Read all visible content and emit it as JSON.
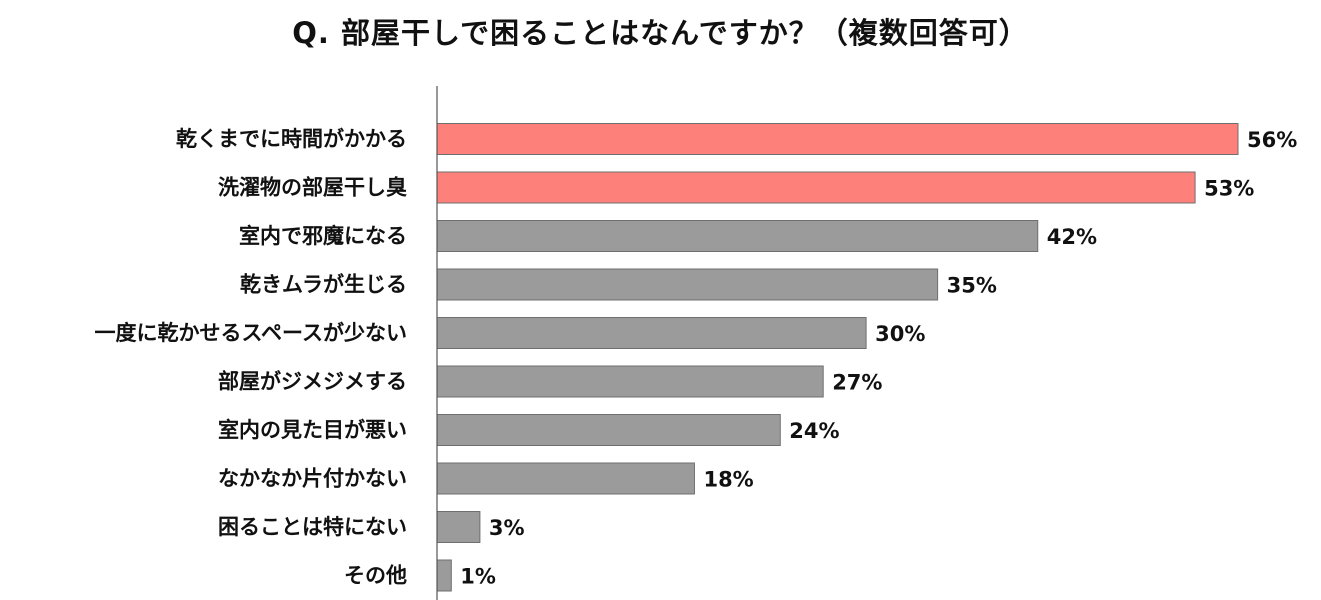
{
  "chart_data": {
    "type": "bar",
    "orientation": "horizontal",
    "title": "Q. 部屋干しで困ることはなんですか？（複数回答可）",
    "categories": [
      "乾くまでに時間がかかる",
      "洗濯物の部屋干し臭",
      "室内で邪魔になる",
      "乾きムラが生じる",
      "一度に乾かせるスペースが少ない",
      "部屋がジメジメする",
      "室内の見た目が悪い",
      "なかなか片付かない",
      "困ることは特にない",
      "その他"
    ],
    "values": [
      56,
      53,
      42,
      35,
      30,
      27,
      24,
      18,
      3,
      1
    ],
    "value_labels": [
      "56%",
      "53%",
      "42%",
      "35%",
      "30%",
      "27%",
      "24%",
      "18%",
      "3%",
      "1%"
    ],
    "unit": "%",
    "xlim": [
      0,
      56
    ],
    "grid": false,
    "highlight_count": 2,
    "colors": {
      "highlight": "#fd807b",
      "normal": "#9b9b9b",
      "bar_border": "#6f6f6f",
      "axis": "#555555"
    }
  }
}
